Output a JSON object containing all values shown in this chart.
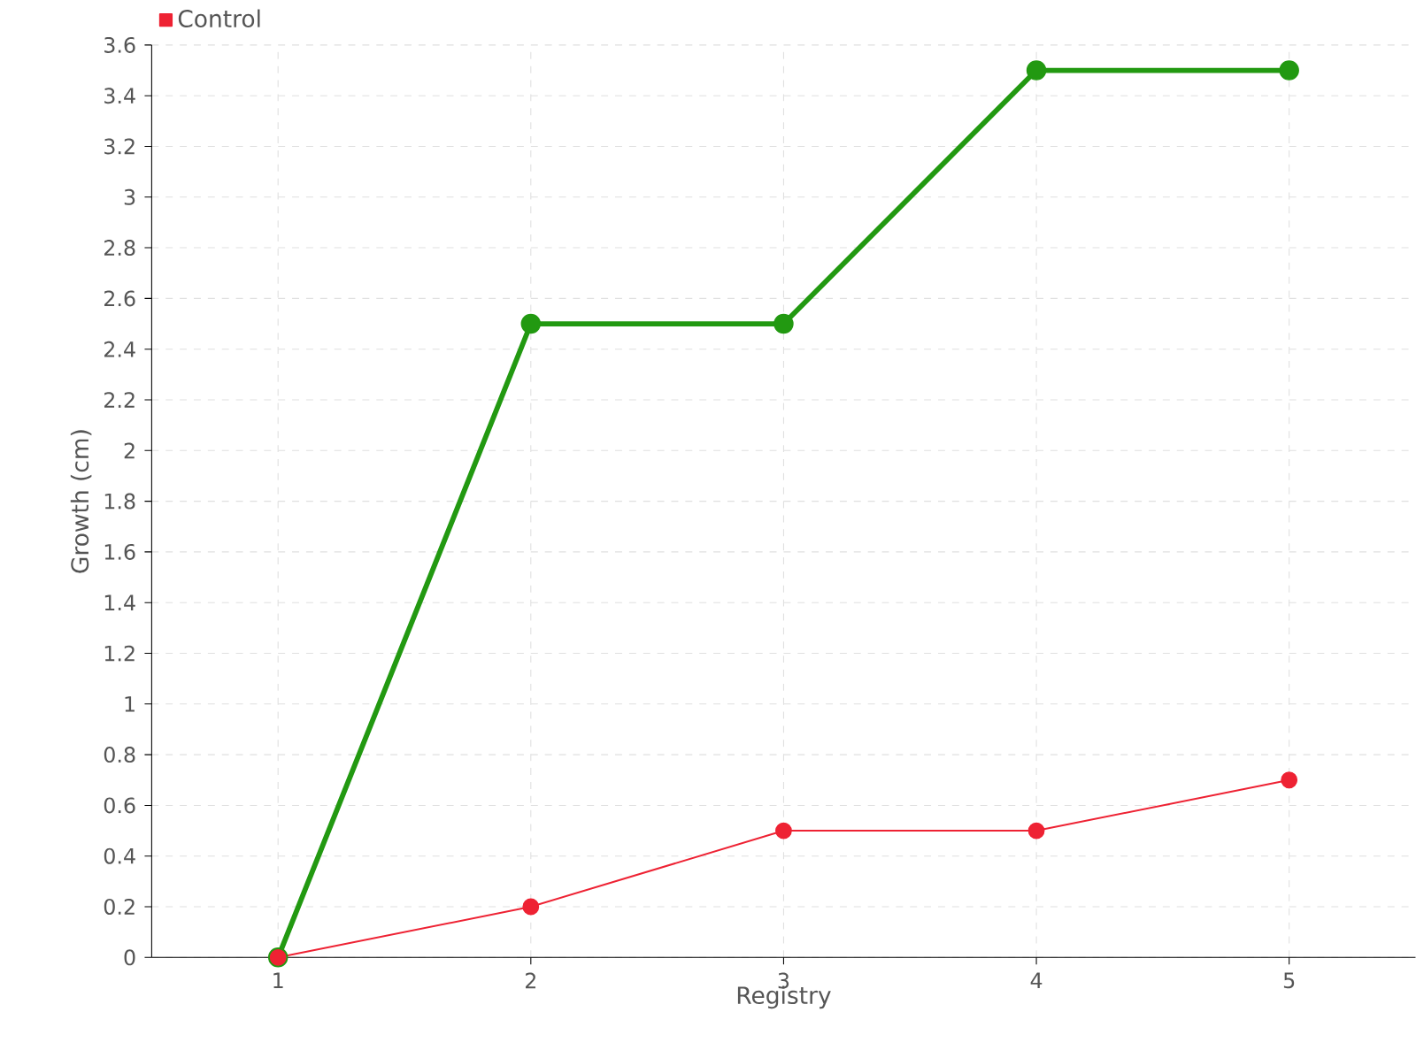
{
  "chart_data": {
    "type": "line",
    "xlabel": "Registry",
    "ylabel": "Growth (cm)",
    "x": [
      1,
      2,
      3,
      4,
      5
    ],
    "xlim": [
      0.5,
      5.5
    ],
    "xticks": [
      1,
      2,
      3,
      4,
      5
    ],
    "ylim": [
      0,
      3.6
    ],
    "yticks": [
      0,
      0.2,
      0.4,
      0.6,
      0.8,
      1,
      1.2,
      1.4,
      1.6,
      1.8,
      2,
      2.2,
      2.4,
      2.6,
      2.8,
      3,
      3.2,
      3.4,
      3.6
    ],
    "series": [
      {
        "color": "#229911",
        "values": [
          0,
          2.5,
          2.5,
          3.5,
          3.5
        ]
      },
      {
        "name": "Control",
        "color": "#ee2233",
        "values": [
          0,
          0.2,
          0.5,
          0.5,
          0.7
        ]
      }
    ],
    "legend": "top left",
    "grid": true,
    "marker": "circle",
    "line_style": "solid"
  }
}
